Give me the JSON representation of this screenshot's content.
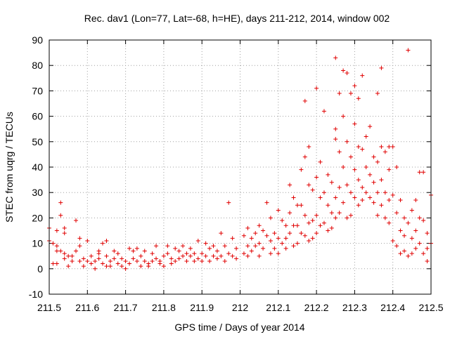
{
  "chart_data": {
    "type": "scatter",
    "title": "Rec. dav1 (Lon=77, Lat=-68, h=HE), days 211-212, 2014, window 002",
    "xlabel": "GPS time / Days of year 2014",
    "ylabel": "STEC from uqrg / TECUs",
    "xlim": [
      211.5,
      212.5
    ],
    "ylim": [
      -10,
      90
    ],
    "x_ticks": [
      "211.5",
      "211.6",
      "211.7",
      "211.8",
      "211.9",
      "212",
      "212.1",
      "212.2",
      "212.3",
      "212.4",
      "212.5"
    ],
    "y_ticks": [
      "-10",
      "0",
      "10",
      "20",
      "30",
      "40",
      "50",
      "60",
      "70",
      "80",
      "90"
    ],
    "grid": true,
    "legend": "none",
    "marker": "plus",
    "color": "#e00000",
    "points": [
      [
        211.5,
        16
      ],
      [
        211.5,
        11
      ],
      [
        211.51,
        10
      ],
      [
        211.51,
        2
      ],
      [
        211.52,
        15
      ],
      [
        211.52,
        9
      ],
      [
        211.52,
        7
      ],
      [
        211.52,
        2
      ],
      [
        211.53,
        26
      ],
      [
        211.53,
        21
      ],
      [
        211.53,
        7
      ],
      [
        211.54,
        16
      ],
      [
        211.54,
        14
      ],
      [
        211.54,
        6
      ],
      [
        211.54,
        4
      ],
      [
        211.55,
        5
      ],
      [
        211.55,
        1
      ],
      [
        211.56,
        3
      ],
      [
        211.56,
        5
      ],
      [
        211.57,
        19
      ],
      [
        211.57,
        7
      ],
      [
        211.58,
        12
      ],
      [
        211.58,
        9
      ],
      [
        211.58,
        3
      ],
      [
        211.59,
        4
      ],
      [
        211.59,
        1
      ],
      [
        211.6,
        11
      ],
      [
        211.6,
        3
      ],
      [
        211.61,
        5
      ],
      [
        211.61,
        2
      ],
      [
        211.62,
        3
      ],
      [
        211.62,
        0
      ],
      [
        211.63,
        7
      ],
      [
        211.63,
        6
      ],
      [
        211.63,
        4
      ],
      [
        211.64,
        10
      ],
      [
        211.64,
        2
      ],
      [
        211.65,
        11
      ],
      [
        211.65,
        5
      ],
      [
        211.65,
        1
      ],
      [
        211.66,
        3
      ],
      [
        211.66,
        1
      ],
      [
        211.67,
        7
      ],
      [
        211.67,
        4
      ],
      [
        211.68,
        6
      ],
      [
        211.68,
        2
      ],
      [
        211.69,
        4
      ],
      [
        211.69,
        1
      ],
      [
        211.7,
        3
      ],
      [
        211.7,
        0
      ],
      [
        211.71,
        8
      ],
      [
        211.71,
        2
      ],
      [
        211.72,
        7
      ],
      [
        211.72,
        4
      ],
      [
        211.73,
        8
      ],
      [
        211.73,
        3
      ],
      [
        211.74,
        5
      ],
      [
        211.74,
        1
      ],
      [
        211.75,
        7
      ],
      [
        211.75,
        3
      ],
      [
        211.76,
        2
      ],
      [
        211.76,
        1
      ],
      [
        211.77,
        6
      ],
      [
        211.77,
        3
      ],
      [
        211.78,
        9
      ],
      [
        211.78,
        4
      ],
      [
        211.79,
        3
      ],
      [
        211.79,
        2
      ],
      [
        211.8,
        5
      ],
      [
        211.8,
        1
      ],
      [
        211.81,
        9
      ],
      [
        211.81,
        6
      ],
      [
        211.82,
        4
      ],
      [
        211.82,
        2
      ],
      [
        211.83,
        8
      ],
      [
        211.83,
        3
      ],
      [
        211.84,
        7
      ],
      [
        211.84,
        4
      ],
      [
        211.85,
        9
      ],
      [
        211.85,
        5
      ],
      [
        211.86,
        6
      ],
      [
        211.86,
        3
      ],
      [
        211.87,
        8
      ],
      [
        211.87,
        5
      ],
      [
        211.88,
        6
      ],
      [
        211.88,
        3
      ],
      [
        211.89,
        11
      ],
      [
        211.89,
        4
      ],
      [
        211.9,
        6
      ],
      [
        211.9,
        3
      ],
      [
        211.91,
        10
      ],
      [
        211.91,
        5
      ],
      [
        211.92,
        8
      ],
      [
        211.92,
        3
      ],
      [
        211.93,
        9
      ],
      [
        211.93,
        5
      ],
      [
        211.94,
        7
      ],
      [
        211.94,
        4
      ],
      [
        211.95,
        14
      ],
      [
        211.95,
        5
      ],
      [
        211.96,
        9
      ],
      [
        211.96,
        3
      ],
      [
        211.97,
        26
      ],
      [
        211.97,
        6
      ],
      [
        211.98,
        12
      ],
      [
        211.98,
        5
      ],
      [
        211.99,
        8
      ],
      [
        211.99,
        4
      ],
      [
        212.01,
        13
      ],
      [
        212.01,
        6
      ],
      [
        212.02,
        16
      ],
      [
        212.02,
        9
      ],
      [
        212.02,
        5
      ],
      [
        212.03,
        12
      ],
      [
        212.03,
        7
      ],
      [
        212.04,
        14
      ],
      [
        212.04,
        9
      ],
      [
        212.05,
        17
      ],
      [
        212.05,
        10
      ],
      [
        212.05,
        5
      ],
      [
        212.06,
        15
      ],
      [
        212.06,
        8
      ],
      [
        212.07,
        26
      ],
      [
        212.07,
        13
      ],
      [
        212.08,
        20
      ],
      [
        212.08,
        11
      ],
      [
        212.08,
        6
      ],
      [
        212.09,
        14
      ],
      [
        212.09,
        8
      ],
      [
        212.1,
        23
      ],
      [
        212.1,
        12
      ],
      [
        212.1,
        6
      ],
      [
        212.11,
        19
      ],
      [
        212.11,
        10
      ],
      [
        212.12,
        17
      ],
      [
        212.12,
        12
      ],
      [
        212.12,
        8
      ],
      [
        212.13,
        33
      ],
      [
        212.13,
        22
      ],
      [
        212.13,
        14
      ],
      [
        212.14,
        28
      ],
      [
        212.14,
        17
      ],
      [
        212.14,
        9
      ],
      [
        212.15,
        25
      ],
      [
        212.15,
        17
      ],
      [
        212.15,
        10
      ],
      [
        212.16,
        39
      ],
      [
        212.16,
        25
      ],
      [
        212.16,
        14
      ],
      [
        212.17,
        66
      ],
      [
        212.17,
        44
      ],
      [
        212.17,
        21
      ],
      [
        212.17,
        13
      ],
      [
        212.18,
        48
      ],
      [
        212.18,
        33
      ],
      [
        212.18,
        18
      ],
      [
        212.18,
        11
      ],
      [
        212.19,
        31
      ],
      [
        212.19,
        19
      ],
      [
        212.19,
        12
      ],
      [
        212.2,
        71
      ],
      [
        212.2,
        36
      ],
      [
        212.2,
        21
      ],
      [
        212.2,
        14
      ],
      [
        212.21,
        42
      ],
      [
        212.21,
        28
      ],
      [
        212.21,
        17
      ],
      [
        212.22,
        62
      ],
      [
        212.22,
        30
      ],
      [
        212.22,
        18
      ],
      [
        212.23,
        37
      ],
      [
        212.23,
        25
      ],
      [
        212.23,
        15
      ],
      [
        212.24,
        34
      ],
      [
        212.24,
        22
      ],
      [
        212.24,
        16
      ],
      [
        212.25,
        83
      ],
      [
        212.25,
        55
      ],
      [
        212.25,
        51
      ],
      [
        212.25,
        28
      ],
      [
        212.25,
        20
      ],
      [
        212.26,
        69
      ],
      [
        212.26,
        46
      ],
      [
        212.26,
        32
      ],
      [
        212.26,
        22
      ],
      [
        212.27,
        78
      ],
      [
        212.27,
        60
      ],
      [
        212.27,
        40
      ],
      [
        212.27,
        26
      ],
      [
        212.28,
        77
      ],
      [
        212.28,
        50
      ],
      [
        212.28,
        33
      ],
      [
        212.28,
        20
      ],
      [
        212.29,
        69
      ],
      [
        212.29,
        44
      ],
      [
        212.29,
        30
      ],
      [
        212.29,
        21
      ],
      [
        212.3,
        72
      ],
      [
        212.3,
        57
      ],
      [
        212.3,
        39
      ],
      [
        212.3,
        28
      ],
      [
        212.31,
        67
      ],
      [
        212.31,
        48
      ],
      [
        212.31,
        35
      ],
      [
        212.31,
        25
      ],
      [
        212.32,
        76
      ],
      [
        212.32,
        47
      ],
      [
        212.32,
        32
      ],
      [
        212.32,
        27
      ],
      [
        212.33,
        52
      ],
      [
        212.33,
        40
      ],
      [
        212.33,
        30
      ],
      [
        212.34,
        56
      ],
      [
        212.34,
        37
      ],
      [
        212.34,
        28
      ],
      [
        212.35,
        44
      ],
      [
        212.35,
        34
      ],
      [
        212.35,
        26
      ],
      [
        212.36,
        69
      ],
      [
        212.36,
        42
      ],
      [
        212.36,
        30
      ],
      [
        212.36,
        21
      ],
      [
        212.37,
        79
      ],
      [
        212.37,
        48
      ],
      [
        212.37,
        35
      ],
      [
        212.37,
        25
      ],
      [
        212.38,
        46
      ],
      [
        212.38,
        30
      ],
      [
        212.38,
        20
      ],
      [
        212.39,
        48
      ],
      [
        212.39,
        39
      ],
      [
        212.39,
        27
      ],
      [
        212.39,
        18
      ],
      [
        212.4,
        48
      ],
      [
        212.4,
        29
      ],
      [
        212.4,
        11
      ],
      [
        212.41,
        40
      ],
      [
        212.41,
        22
      ],
      [
        212.41,
        9
      ],
      [
        212.42,
        27
      ],
      [
        212.42,
        15
      ],
      [
        212.42,
        6
      ],
      [
        212.43,
        20
      ],
      [
        212.43,
        13
      ],
      [
        212.43,
        7
      ],
      [
        212.44,
        86
      ],
      [
        212.44,
        18
      ],
      [
        212.44,
        5
      ],
      [
        212.45,
        23
      ],
      [
        212.45,
        12
      ],
      [
        212.45,
        6
      ],
      [
        212.46,
        27
      ],
      [
        212.46,
        15
      ],
      [
        212.46,
        8
      ],
      [
        212.47,
        38
      ],
      [
        212.47,
        20
      ],
      [
        212.47,
        10
      ],
      [
        212.48,
        38
      ],
      [
        212.48,
        19
      ],
      [
        212.48,
        6
      ],
      [
        212.49,
        14
      ],
      [
        212.49,
        8
      ],
      [
        212.49,
        3
      ],
      [
        212.5,
        29
      ],
      [
        212.5,
        10
      ]
    ]
  }
}
